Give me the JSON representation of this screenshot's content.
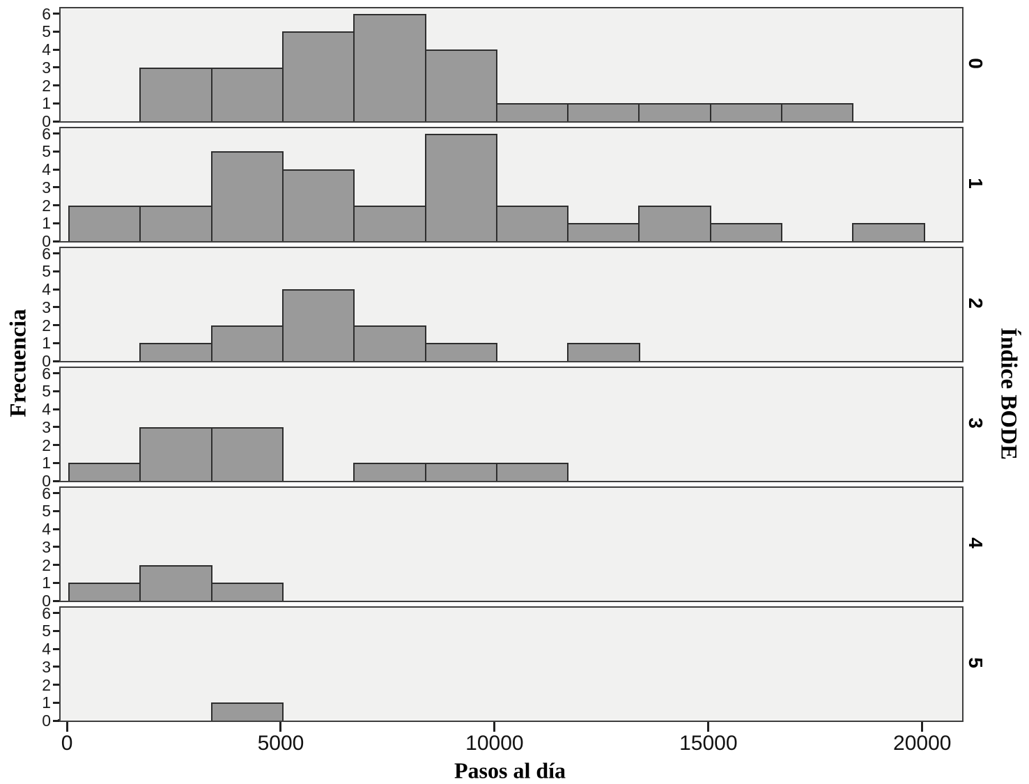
{
  "figure": {
    "xlabel": "Pasos al día",
    "ylabel": "Frecuencia",
    "facet_axis_label": "Índice BODE"
  },
  "chart_data": {
    "type": "histogram",
    "title": "",
    "xlabel": "Pasos al día",
    "ylabel": "Frecuencia",
    "facet_variable": "Índice BODE",
    "facet_position": "rows-right",
    "bin_width": 1666.67,
    "xlim": [
      -180,
      20900
    ],
    "ylim": [
      0,
      6.3
    ],
    "grid": false,
    "x_ticks": [
      0,
      5000,
      10000,
      15000,
      20000
    ],
    "x_tick_labels": [
      "0",
      "5000",
      "10000",
      "15000",
      "20000"
    ],
    "y_ticks": [
      0,
      1,
      2,
      3,
      4,
      5,
      6
    ],
    "y_tick_labels": [
      "0",
      "1",
      "2",
      "3",
      "4",
      "5",
      "6"
    ],
    "panels": [
      {
        "label": "0",
        "bins": [
          {
            "start": 1667,
            "count": 3
          },
          {
            "start": 3333,
            "count": 3
          },
          {
            "start": 5000,
            "count": 5
          },
          {
            "start": 6667,
            "count": 6
          },
          {
            "start": 8333,
            "count": 4
          },
          {
            "start": 10000,
            "count": 1
          },
          {
            "start": 11667,
            "count": 1
          },
          {
            "start": 13333,
            "count": 1
          },
          {
            "start": 15000,
            "count": 1
          },
          {
            "start": 16667,
            "count": 1
          }
        ]
      },
      {
        "label": "1",
        "bins": [
          {
            "start": 0,
            "count": 2
          },
          {
            "start": 1667,
            "count": 2
          },
          {
            "start": 3333,
            "count": 5
          },
          {
            "start": 5000,
            "count": 4
          },
          {
            "start": 6667,
            "count": 2
          },
          {
            "start": 8333,
            "count": 6
          },
          {
            "start": 10000,
            "count": 2
          },
          {
            "start": 11667,
            "count": 1
          },
          {
            "start": 13333,
            "count": 2
          },
          {
            "start": 15000,
            "count": 1
          },
          {
            "start": 18333,
            "count": 1
          }
        ]
      },
      {
        "label": "2",
        "bins": [
          {
            "start": 1667,
            "count": 1
          },
          {
            "start": 3333,
            "count": 2
          },
          {
            "start": 5000,
            "count": 4
          },
          {
            "start": 6667,
            "count": 2
          },
          {
            "start": 8333,
            "count": 1
          },
          {
            "start": 11667,
            "count": 1
          }
        ]
      },
      {
        "label": "3",
        "bins": [
          {
            "start": 0,
            "count": 1
          },
          {
            "start": 1667,
            "count": 3
          },
          {
            "start": 3333,
            "count": 3
          },
          {
            "start": 6667,
            "count": 1
          },
          {
            "start": 8333,
            "count": 1
          },
          {
            "start": 10000,
            "count": 1
          }
        ]
      },
      {
        "label": "4",
        "bins": [
          {
            "start": 0,
            "count": 1
          },
          {
            "start": 1667,
            "count": 2
          },
          {
            "start": 3333,
            "count": 1
          }
        ]
      },
      {
        "label": "5",
        "bins": [
          {
            "start": 3333,
            "count": 1
          }
        ]
      }
    ],
    "colors": {
      "bar_fill": "#9a9a9a",
      "bar_border": "#2e2e2e",
      "panel_bg": "#f1f1f0",
      "panel_border": "#3e3e3e",
      "axis_color": "#222222",
      "background": "#ffffff"
    }
  }
}
